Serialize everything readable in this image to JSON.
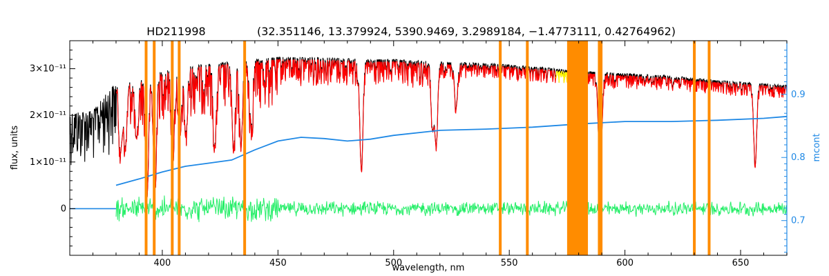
{
  "chart_data": {
    "type": "line",
    "title": "HD211998",
    "subtitle": "(32.351146, 13.379924, 5390.9469, 3.2989184, −1.4773111, 0.42764962)",
    "xlabel": "wavelength, nm",
    "ylabel": "flux, units",
    "y2label": "mcont",
    "xlim": [
      360,
      670
    ],
    "ylim": [
      -1e-11,
      3.6e-11
    ],
    "y2lim": [
      0.645,
      0.985
    ],
    "x_ticks": [
      400,
      450,
      500,
      550,
      600,
      650
    ],
    "x_tick_labels": [
      "400",
      "450",
      "500",
      "550",
      "600",
      "650"
    ],
    "y_ticks": [
      0,
      1e-11,
      2e-11,
      3e-11
    ],
    "y_tick_labels": [
      "0",
      "1×10⁻¹¹",
      "2×10⁻¹¹",
      "3×10⁻¹¹"
    ],
    "y2_ticks": [
      0.7,
      0.8,
      0.9
    ],
    "y2_tick_labels": [
      "0.7",
      "0.8",
      "0.9"
    ],
    "grid": false,
    "colors": {
      "observed": "#000000",
      "model": "#ff0000",
      "continuum": "#1e88e5",
      "residuals": "#22ee66",
      "masks": "#ff8c00",
      "highlight": "#ffff00"
    },
    "continuum_curve": {
      "x": [
        380,
        390,
        400,
        410,
        420,
        430,
        440,
        450,
        460,
        470,
        480,
        490,
        500,
        520,
        540,
        560,
        580,
        600,
        620,
        640,
        660,
        670
      ],
      "y": [
        0.756,
        0.766,
        0.777,
        0.786,
        0.791,
        0.796,
        0.812,
        0.826,
        0.832,
        0.83,
        0.826,
        0.829,
        0.835,
        0.843,
        0.845,
        0.848,
        0.853,
        0.857,
        0.857,
        0.859,
        0.862,
        0.865
      ]
    },
    "flux_envelope": {
      "x": [
        360,
        370,
        378,
        380,
        390,
        400,
        410,
        420,
        430,
        440,
        450,
        460,
        470,
        480,
        490,
        500,
        520,
        540,
        560,
        580,
        600,
        620,
        640,
        660,
        670
      ],
      "y": [
        2.05e-11,
        2.1e-11,
        2.6e-11,
        2.7e-11,
        2.75e-11,
        2.95e-11,
        3.05e-11,
        3.1e-11,
        3.15e-11,
        3.2e-11,
        3.25e-11,
        3.25e-11,
        3.25e-11,
        3.22e-11,
        3.2e-11,
        3.2e-11,
        3.15e-11,
        3.12e-11,
        3.05e-11,
        2.95e-11,
        2.9e-11,
        2.85e-11,
        2.75e-11,
        2.68e-11,
        2.65e-11
      ]
    },
    "absorption_lines": [
      {
        "x": 382.0,
        "depth": 0.55
      },
      {
        "x": 384.0,
        "depth": 0.5
      },
      {
        "x": 388.9,
        "depth": 0.45
      },
      {
        "x": 393.4,
        "depth": 0.9
      },
      {
        "x": 396.8,
        "depth": 0.85
      },
      {
        "x": 404.6,
        "depth": 0.55
      },
      {
        "x": 407.7,
        "depth": 0.45
      },
      {
        "x": 410.2,
        "depth": 0.45
      },
      {
        "x": 422.7,
        "depth": 0.55
      },
      {
        "x": 430.8,
        "depth": 0.6
      },
      {
        "x": 434.0,
        "depth": 0.55
      },
      {
        "x": 438.4,
        "depth": 0.4
      },
      {
        "x": 486.1,
        "depth": 0.75
      },
      {
        "x": 516.9,
        "depth": 0.45
      },
      {
        "x": 518.4,
        "depth": 0.55
      },
      {
        "x": 527.0,
        "depth": 0.3
      },
      {
        "x": 589.0,
        "depth": 0.5
      },
      {
        "x": 589.6,
        "depth": 0.45
      },
      {
        "x": 656.3,
        "depth": 0.65
      }
    ],
    "mask_lines_x": [
      393.0,
      396.5,
      404.3,
      407.3,
      435.6,
      546.1,
      557.8,
      588.9,
      589.7,
      630.0,
      636.4
    ],
    "mask_band": [
      575,
      584
    ]
  }
}
